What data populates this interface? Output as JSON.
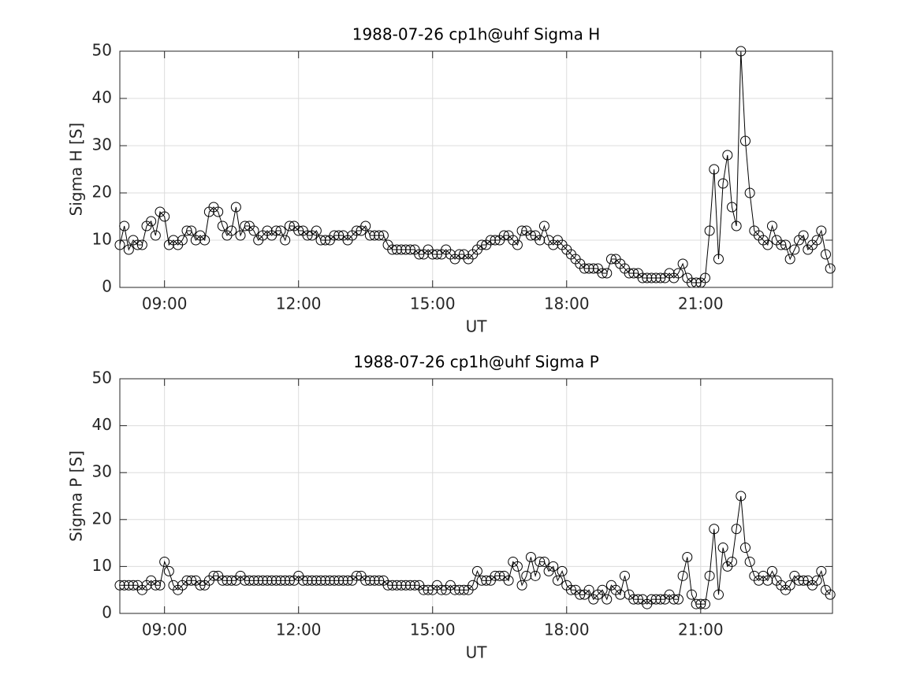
{
  "chart_data": [
    {
      "type": "line",
      "title": "1988-07-26  cp1h@uhf Sigma H",
      "xlabel": "UT",
      "ylabel": "Sigma H [S]",
      "color": "#000000",
      "marker": "circle",
      "grid": true,
      "xlim": [
        8.0,
        23.95
      ],
      "xticks": [
        {
          "value": 9,
          "label": "09:00"
        },
        {
          "value": 12,
          "label": "12:00"
        },
        {
          "value": 15,
          "label": "15:00"
        },
        {
          "value": 18,
          "label": "18:00"
        },
        {
          "value": 21,
          "label": "21:00"
        }
      ],
      "ylim": [
        0,
        50
      ],
      "yticks": [
        0,
        10,
        20,
        30,
        40,
        50
      ],
      "x": [
        8.0,
        8.1,
        8.2,
        8.3,
        8.4,
        8.5,
        8.6,
        8.7,
        8.8,
        8.9,
        9.0,
        9.1,
        9.2,
        9.3,
        9.4,
        9.5,
        9.6,
        9.7,
        9.8,
        9.9,
        10.0,
        10.1,
        10.2,
        10.3,
        10.4,
        10.5,
        10.6,
        10.7,
        10.8,
        10.9,
        11.0,
        11.1,
        11.2,
        11.3,
        11.4,
        11.5,
        11.6,
        11.7,
        11.8,
        11.9,
        12.0,
        12.1,
        12.2,
        12.3,
        12.4,
        12.5,
        12.6,
        12.7,
        12.8,
        12.9,
        13.0,
        13.1,
        13.2,
        13.3,
        13.4,
        13.5,
        13.6,
        13.7,
        13.8,
        13.9,
        14.0,
        14.1,
        14.2,
        14.3,
        14.4,
        14.5,
        14.6,
        14.7,
        14.8,
        14.9,
        15.0,
        15.1,
        15.2,
        15.3,
        15.4,
        15.5,
        15.6,
        15.7,
        15.8,
        15.9,
        16.0,
        16.1,
        16.2,
        16.3,
        16.4,
        16.5,
        16.6,
        16.7,
        16.8,
        16.9,
        17.0,
        17.1,
        17.2,
        17.3,
        17.4,
        17.5,
        17.6,
        17.7,
        17.8,
        17.9,
        18.0,
        18.1,
        18.2,
        18.3,
        18.4,
        18.5,
        18.6,
        18.7,
        18.8,
        18.9,
        19.0,
        19.1,
        19.2,
        19.3,
        19.4,
        19.5,
        19.6,
        19.7,
        19.8,
        19.9,
        20.0,
        20.1,
        20.2,
        20.3,
        20.4,
        20.5,
        20.6,
        20.7,
        20.8,
        20.9,
        21.0,
        21.1,
        21.2,
        21.3,
        21.4,
        21.5,
        21.6,
        21.7,
        21.8,
        21.9,
        22.0,
        22.1,
        22.2,
        22.3,
        22.4,
        22.5,
        22.6,
        22.7,
        22.8,
        22.9,
        23.0,
        23.1,
        23.2,
        23.3,
        23.4,
        23.5,
        23.6,
        23.7,
        23.8,
        23.9
      ],
      "series": [
        {
          "values": [
            9,
            13,
            8,
            10,
            9,
            9,
            13,
            14,
            11,
            16,
            15,
            9,
            10,
            9,
            10,
            12,
            12,
            10,
            11,
            10,
            16,
            17,
            16,
            13,
            11,
            12,
            17,
            11,
            13,
            13,
            12,
            10,
            11,
            12,
            11,
            12,
            12,
            10,
            13,
            13,
            12,
            12,
            11,
            11,
            12,
            10,
            10,
            10,
            11,
            11,
            11,
            10,
            11,
            12,
            12,
            13,
            11,
            11,
            11,
            11,
            9,
            8,
            8,
            8,
            8,
            8,
            8,
            7,
            7,
            8,
            7,
            7,
            7,
            8,
            7,
            6,
            7,
            7,
            6,
            7,
            8,
            9,
            9,
            10,
            10,
            10,
            11,
            11,
            10,
            9,
            12,
            12,
            11,
            11,
            10,
            13,
            10,
            9,
            10,
            9,
            8,
            7,
            6,
            5,
            4,
            4,
            4,
            4,
            3,
            3,
            6,
            6,
            5,
            4,
            3,
            3,
            3,
            2,
            2,
            2,
            2,
            2,
            2,
            3,
            2,
            3,
            5,
            2,
            1,
            1,
            1,
            2,
            12,
            25,
            6,
            22,
            28,
            17,
            13,
            50,
            31,
            20,
            12,
            11,
            10,
            9,
            13,
            10,
            9,
            9,
            6,
            8,
            10,
            11,
            8,
            9,
            10,
            12,
            7,
            4
          ]
        }
      ]
    },
    {
      "type": "line",
      "title": "1988-07-26  cp1h@uhf Sigma P",
      "xlabel": "UT",
      "ylabel": "Sigma P [S]",
      "color": "#000000",
      "marker": "circle",
      "grid": true,
      "xlim": [
        8.0,
        23.95
      ],
      "xticks": [
        {
          "value": 9,
          "label": "09:00"
        },
        {
          "value": 12,
          "label": "12:00"
        },
        {
          "value": 15,
          "label": "15:00"
        },
        {
          "value": 18,
          "label": "18:00"
        },
        {
          "value": 21,
          "label": "21:00"
        }
      ],
      "ylim": [
        0,
        50
      ],
      "yticks": [
        0,
        10,
        20,
        30,
        40,
        50
      ],
      "x": [
        8.0,
        8.1,
        8.2,
        8.3,
        8.4,
        8.5,
        8.6,
        8.7,
        8.8,
        8.9,
        9.0,
        9.1,
        9.2,
        9.3,
        9.4,
        9.5,
        9.6,
        9.7,
        9.8,
        9.9,
        10.0,
        10.1,
        10.2,
        10.3,
        10.4,
        10.5,
        10.6,
        10.7,
        10.8,
        10.9,
        11.0,
        11.1,
        11.2,
        11.3,
        11.4,
        11.5,
        11.6,
        11.7,
        11.8,
        11.9,
        12.0,
        12.1,
        12.2,
        12.3,
        12.4,
        12.5,
        12.6,
        12.7,
        12.8,
        12.9,
        13.0,
        13.1,
        13.2,
        13.3,
        13.4,
        13.5,
        13.6,
        13.7,
        13.8,
        13.9,
        14.0,
        14.1,
        14.2,
        14.3,
        14.4,
        14.5,
        14.6,
        14.7,
        14.8,
        14.9,
        15.0,
        15.1,
        15.2,
        15.3,
        15.4,
        15.5,
        15.6,
        15.7,
        15.8,
        15.9,
        16.0,
        16.1,
        16.2,
        16.3,
        16.4,
        16.5,
        16.6,
        16.7,
        16.8,
        16.9,
        17.0,
        17.1,
        17.2,
        17.3,
        17.4,
        17.5,
        17.6,
        17.7,
        17.8,
        17.9,
        18.0,
        18.1,
        18.2,
        18.3,
        18.4,
        18.5,
        18.6,
        18.7,
        18.8,
        18.9,
        19.0,
        19.1,
        19.2,
        19.3,
        19.4,
        19.5,
        19.6,
        19.7,
        19.8,
        19.9,
        20.0,
        20.1,
        20.2,
        20.3,
        20.4,
        20.5,
        20.6,
        20.7,
        20.8,
        20.9,
        21.0,
        21.1,
        21.2,
        21.3,
        21.4,
        21.5,
        21.6,
        21.7,
        21.8,
        21.9,
        22.0,
        22.1,
        22.2,
        22.3,
        22.4,
        22.5,
        22.6,
        22.7,
        22.8,
        22.9,
        23.0,
        23.1,
        23.2,
        23.3,
        23.4,
        23.5,
        23.6,
        23.7,
        23.8,
        23.9
      ],
      "series": [
        {
          "values": [
            6,
            6,
            6,
            6,
            6,
            5,
            6,
            7,
            6,
            6,
            11,
            9,
            6,
            5,
            6,
            7,
            7,
            7,
            6,
            6,
            7,
            8,
            8,
            7,
            7,
            7,
            7,
            8,
            7,
            7,
            7,
            7,
            7,
            7,
            7,
            7,
            7,
            7,
            7,
            7,
            8,
            7,
            7,
            7,
            7,
            7,
            7,
            7,
            7,
            7,
            7,
            7,
            7,
            8,
            8,
            7,
            7,
            7,
            7,
            7,
            6,
            6,
            6,
            6,
            6,
            6,
            6,
            6,
            5,
            5,
            5,
            6,
            5,
            5,
            6,
            5,
            5,
            5,
            5,
            6,
            9,
            7,
            7,
            7,
            8,
            8,
            8,
            7,
            11,
            10,
            6,
            8,
            12,
            8,
            11,
            11,
            9,
            10,
            7,
            9,
            6,
            5,
            5,
            4,
            4,
            5,
            3,
            4,
            5,
            3,
            6,
            5,
            4,
            8,
            4,
            3,
            3,
            3,
            2,
            3,
            3,
            3,
            3,
            4,
            3,
            3,
            8,
            12,
            4,
            2,
            2,
            2,
            8,
            18,
            4,
            14,
            10,
            11,
            18,
            25,
            14,
            11,
            8,
            7,
            8,
            7,
            9,
            7,
            6,
            5,
            6,
            8,
            7,
            7,
            7,
            6,
            7,
            9,
            5,
            4
          ]
        }
      ]
    }
  ]
}
